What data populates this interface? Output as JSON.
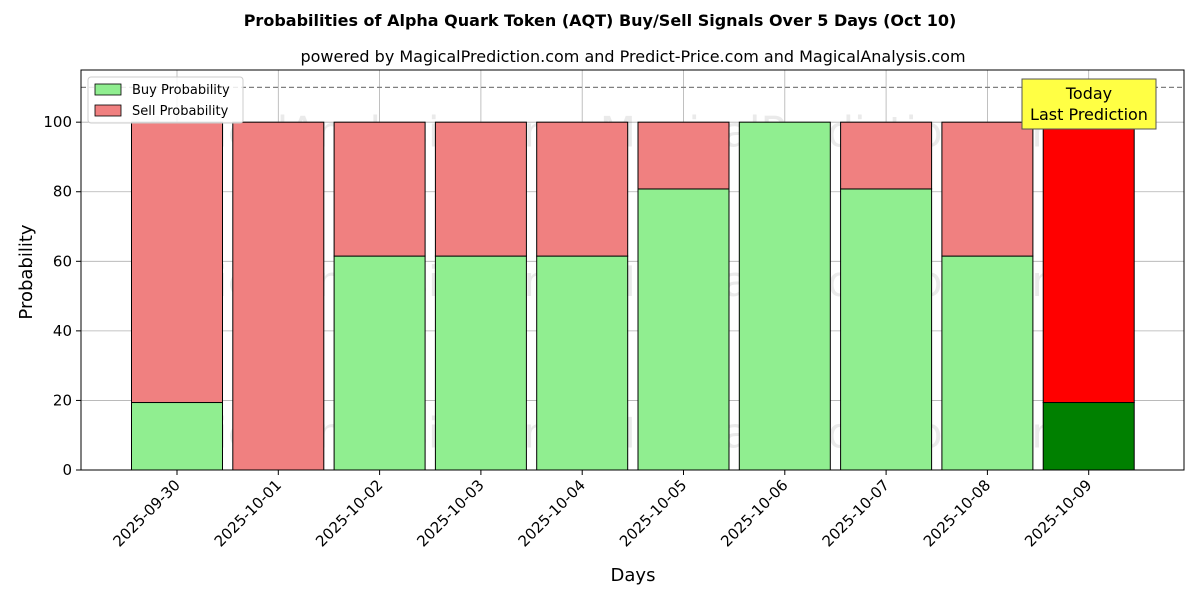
{
  "chart_data": {
    "type": "bar",
    "stacked": true,
    "title": "Probabilities of Alpha Quark Token (AQT) Buy/Sell Signals Over 5 Days (Oct 10)",
    "subtitle": "powered by MagicalPrediction.com and Predict-Price.com and MagicalAnalysis.com",
    "xlabel": "Days",
    "ylabel": "Probability",
    "ylim": [
      0,
      115
    ],
    "yticks": [
      0,
      20,
      40,
      60,
      80,
      100
    ],
    "reference_line": 110,
    "grid": true,
    "legend_position": "top-left",
    "categories": [
      "2025-09-30",
      "2025-10-01",
      "2025-10-02",
      "2025-10-03",
      "2025-10-04",
      "2025-10-05",
      "2025-10-06",
      "2025-10-07",
      "2025-10-08",
      "2025-10-09"
    ],
    "series": [
      {
        "name": "Buy Probability",
        "color": "#90ee90",
        "highlight_color": "#008000",
        "values": [
          19.4,
          0,
          61.5,
          61.5,
          61.5,
          80.8,
          100,
          80.8,
          61.5,
          19.4
        ]
      },
      {
        "name": "Sell Probability",
        "color": "#f08080",
        "highlight_color": "#ff0000",
        "values": [
          80.6,
          100,
          38.5,
          38.5,
          38.5,
          19.2,
          0,
          19.2,
          38.5,
          80.6
        ]
      }
    ],
    "highlight_category": "2025-10-09",
    "annotation": {
      "lines": [
        "Today",
        "Last Prediction"
      ],
      "background": "#ffff44"
    },
    "watermarks": [
      "MagicalAnalysis.com",
      "MagicalPrediction.com"
    ]
  }
}
